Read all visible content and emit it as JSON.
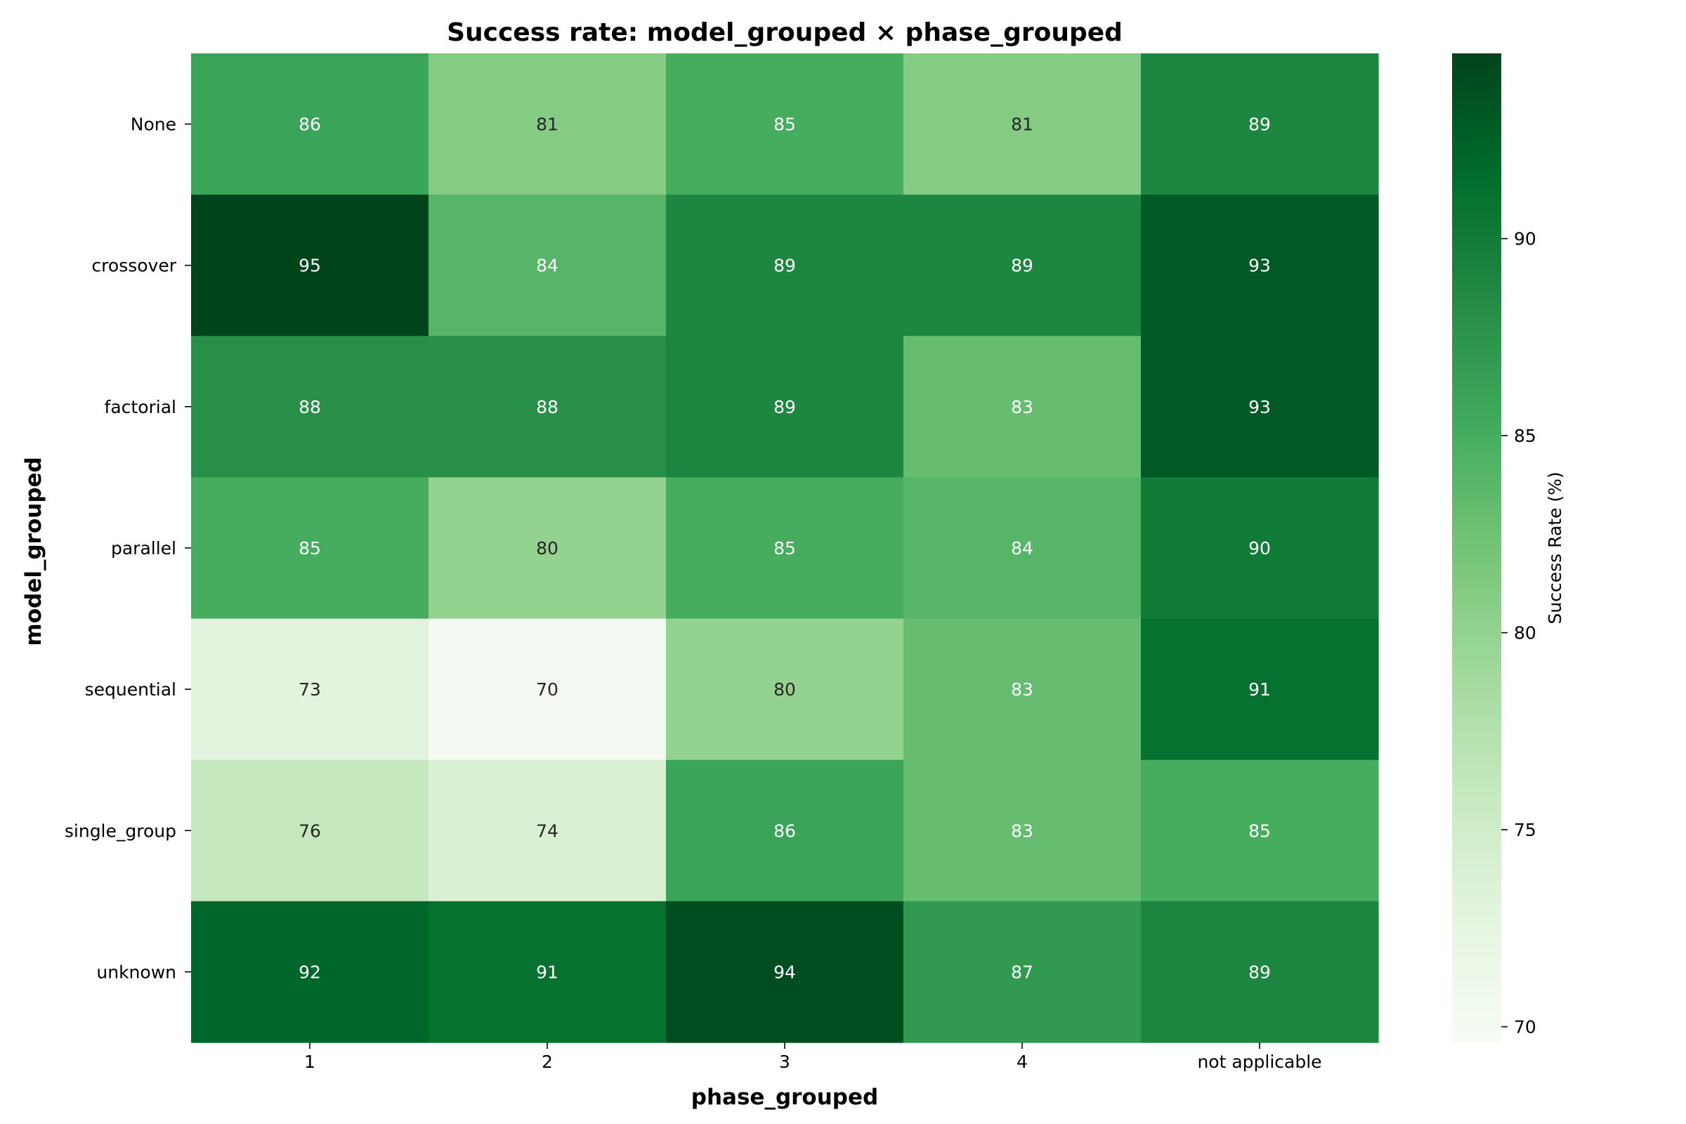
{
  "chart_data": {
    "type": "heatmap",
    "title": "Success rate: model_grouped × phase_grouped",
    "xlabel": "phase_grouped",
    "ylabel": "model_grouped",
    "x_categories": [
      "1",
      "2",
      "3",
      "4",
      "not applicable"
    ],
    "y_categories": [
      "None",
      "crossover",
      "factorial",
      "parallel",
      "sequential",
      "single_group",
      "unknown"
    ],
    "values": [
      [
        86,
        81,
        85,
        81,
        89
      ],
      [
        95,
        84,
        89,
        89,
        93
      ],
      [
        88,
        88,
        89,
        83,
        93
      ],
      [
        85,
        80,
        85,
        84,
        90
      ],
      [
        73,
        70,
        80,
        83,
        91
      ],
      [
        76,
        74,
        86,
        83,
        85
      ],
      [
        92,
        91,
        94,
        87,
        89
      ]
    ],
    "colorbar": {
      "label": "Success Rate (%)",
      "range": [
        69.6,
        94.7
      ],
      "ticks": [
        70,
        75,
        80,
        85,
        90
      ],
      "colormap": "Greens"
    },
    "grid": false
  }
}
